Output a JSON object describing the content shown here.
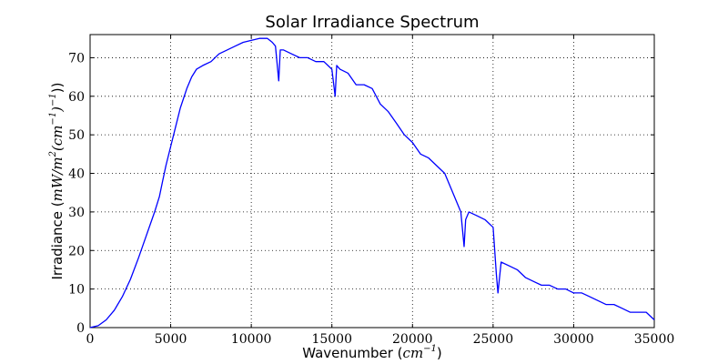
{
  "chart_data": {
    "type": "line",
    "title": "Solar Irradiance Spectrum",
    "xlabel_prefix": "Wavenumber (",
    "xlabel_unit": "cm",
    "xlabel_exp": "−1",
    "xlabel_suffix": ")",
    "ylabel_prefix": "Irradiance (",
    "ylabel_math": "mW/m",
    "ylabel_exp2": "2",
    "ylabel_mid": "(cm",
    "ylabel_exp3": "−1",
    "ylabel_mid2": ")",
    "ylabel_exp4": "−1",
    "ylabel_suffix": "))",
    "xlim": [
      0,
      35000
    ],
    "ylim": [
      0,
      76
    ],
    "xticks": [
      0,
      5000,
      10000,
      15000,
      20000,
      25000,
      30000,
      35000
    ],
    "yticks": [
      0,
      10,
      20,
      30,
      40,
      50,
      60,
      70
    ],
    "grid": true,
    "line_color": "#0000ff",
    "series": [
      {
        "x": [
          0,
          500,
          1000,
          1500,
          2000,
          2500,
          3000,
          3500,
          4000,
          4300,
          4500,
          4700,
          5000,
          5300,
          5600,
          6000,
          6300,
          6600,
          7000,
          7500,
          8000,
          8500,
          9000,
          9500,
          10000,
          10500,
          11000,
          11300,
          11500,
          11700,
          11800,
          12000,
          12500,
          13000,
          13500,
          14000,
          14500,
          15000,
          15200,
          15300,
          15500,
          16000,
          16500,
          17000,
          17500,
          18000,
          18500,
          19000,
          19500,
          20000,
          20500,
          21000,
          21500,
          22000,
          22500,
          23000,
          23200,
          23300,
          23500,
          24000,
          24500,
          25000,
          25200,
          25300,
          25500,
          26000,
          26500,
          27000,
          27500,
          28000,
          28500,
          29000,
          29500,
          30000,
          30500,
          31000,
          31500,
          32000,
          32500,
          33000,
          33500,
          34000,
          34500,
          35000
        ],
        "y": [
          0,
          0.5,
          2,
          4.5,
          8,
          12.5,
          18,
          24,
          30,
          34,
          38,
          42,
          47,
          52,
          57,
          62,
          65,
          67,
          68,
          69,
          71,
          72,
          73,
          74,
          74.5,
          75,
          75,
          74,
          73,
          64,
          72,
          72,
          71,
          70,
          70,
          69,
          69,
          67,
          60,
          68,
          67,
          66,
          63,
          63,
          62,
          58,
          56,
          53,
          50,
          48,
          45,
          44,
          42,
          40,
          35,
          30,
          21,
          28,
          30,
          29,
          28,
          26,
          14,
          9,
          17,
          16,
          15,
          13,
          12,
          11,
          11,
          10,
          10,
          9,
          9,
          8,
          7,
          6,
          6,
          5,
          4,
          4,
          4,
          2
        ]
      }
    ]
  }
}
